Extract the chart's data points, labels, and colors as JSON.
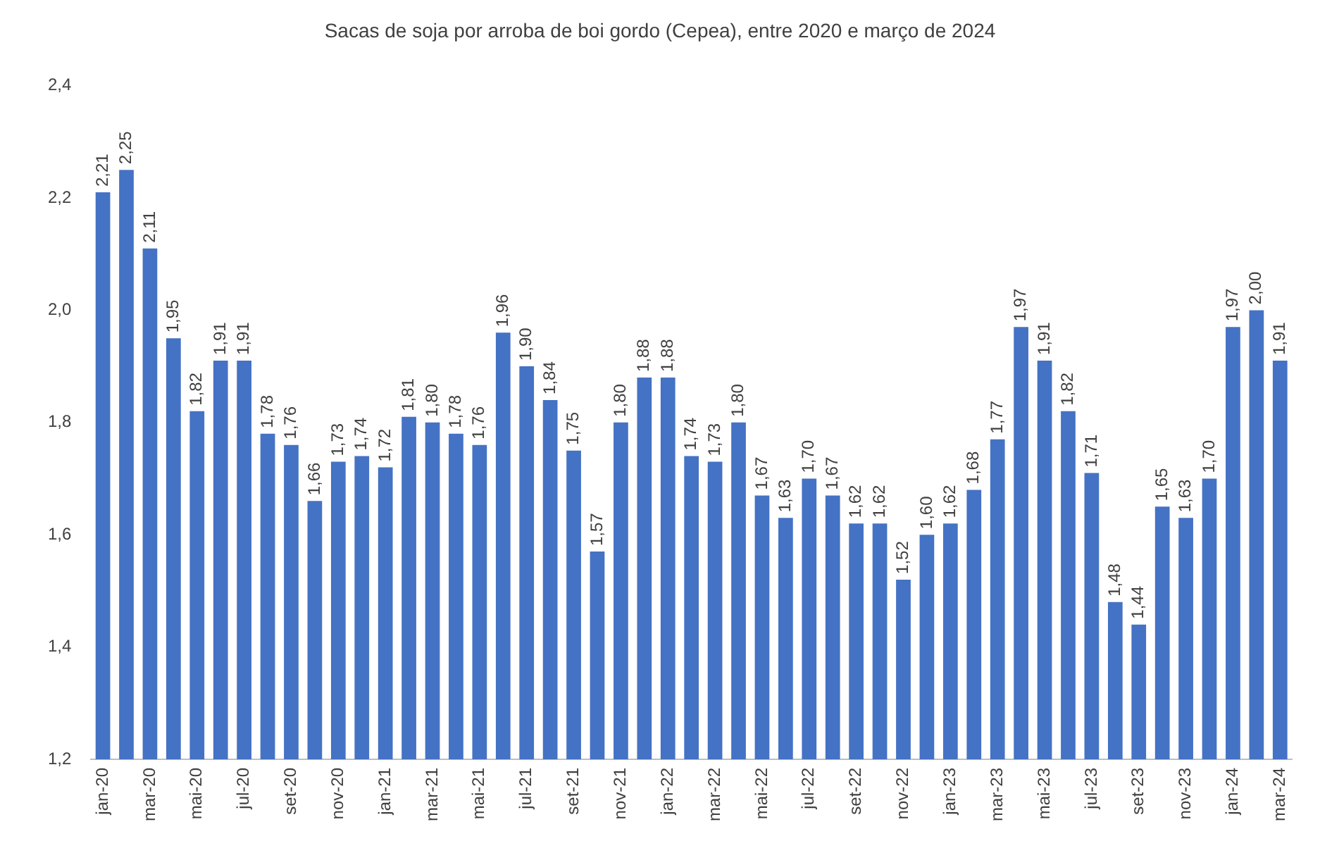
{
  "chart_data": {
    "type": "bar",
    "title": "Sacas de soja por arroba de boi gordo (Cepea), entre 2020 e março de 2024",
    "categories": [
      "jan-20",
      null,
      "mar-20",
      null,
      "mai-20",
      null,
      "jul-20",
      null,
      "set-20",
      null,
      "nov-20",
      null,
      "jan-21",
      null,
      "mar-21",
      null,
      "mai-21",
      null,
      "jul-21",
      null,
      "set-21",
      null,
      "nov-21",
      null,
      "jan-22",
      null,
      "mar-22",
      null,
      "mai-22",
      null,
      "jul-22",
      null,
      "set-22",
      null,
      "nov-22",
      null,
      "jan-23",
      null,
      "mar-23",
      null,
      "mai-23",
      null,
      "jul-23",
      null,
      "set-23",
      null,
      "nov-23",
      null,
      "jan-24",
      null,
      "mar-24"
    ],
    "values": [
      2.21,
      2.25,
      2.11,
      1.95,
      1.82,
      1.91,
      1.91,
      1.78,
      1.76,
      1.66,
      1.73,
      1.74,
      1.72,
      1.81,
      1.8,
      1.78,
      1.76,
      1.96,
      1.9,
      1.84,
      1.75,
      1.57,
      1.8,
      1.88,
      1.88,
      1.74,
      1.73,
      1.8,
      1.67,
      1.63,
      1.7,
      1.67,
      1.62,
      1.62,
      1.52,
      1.6,
      1.62,
      1.68,
      1.77,
      1.97,
      1.91,
      1.82,
      1.71,
      1.48,
      1.44,
      1.65,
      1.63,
      1.7,
      1.97,
      2.0,
      1.91
    ],
    "value_labels": [
      "2,21",
      "2,25",
      "2,11",
      "1,95",
      "1,82",
      "1,91",
      "1,91",
      "1,78",
      "1,76",
      "1,66",
      "1,73",
      "1,74",
      "1,72",
      "1,81",
      "1,80",
      "1,78",
      "1,76",
      "1,96",
      "1,90",
      "1,84",
      "1,75",
      "1,57",
      "1,80",
      "1,88",
      "1,88",
      "1,74",
      "1,73",
      "1,80",
      "1,67",
      "1,63",
      "1,70",
      "1,67",
      "1,62",
      "1,62",
      "1,52",
      "1,60",
      "1,62",
      "1,68",
      "1,77",
      "1,97",
      "1,91",
      "1,82",
      "1,71",
      "1,48",
      "1,44",
      "1,65",
      "1,63",
      "1,70",
      "1,97",
      "2,00",
      "1,91"
    ],
    "color": "#4472c4",
    "ylim": [
      1.2,
      2.4
    ],
    "yticks": [
      {
        "value": 1.2,
        "label": "1,2"
      },
      {
        "value": 1.4,
        "label": "1,4"
      },
      {
        "value": 1.6,
        "label": "1,6"
      },
      {
        "value": 1.8,
        "label": "1,8"
      },
      {
        "value": 2.0,
        "label": "2,0"
      },
      {
        "value": 2.2,
        "label": "2,2"
      },
      {
        "value": 2.4,
        "label": "2,4"
      }
    ],
    "grid": false,
    "legend": false
  }
}
